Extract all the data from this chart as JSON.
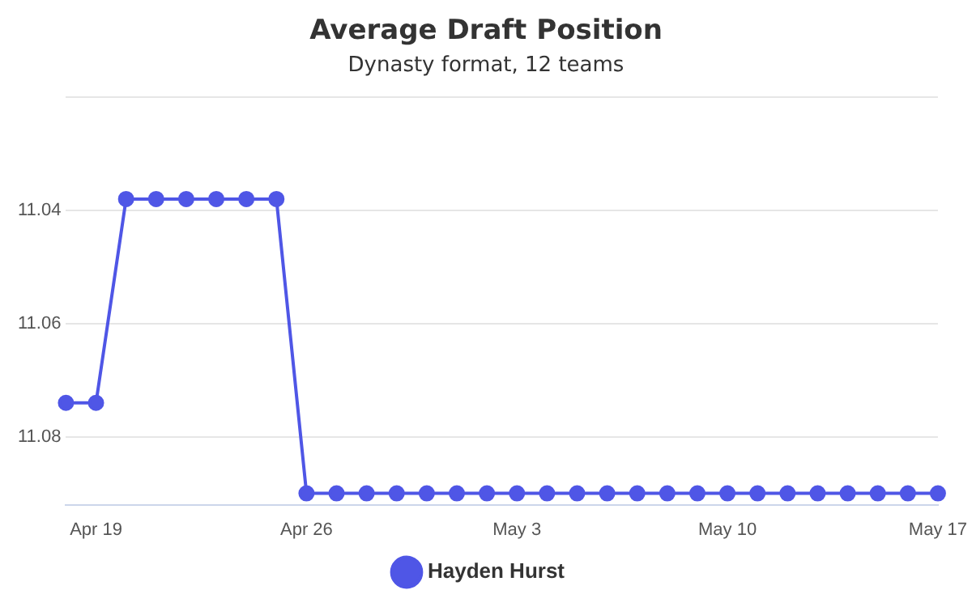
{
  "chart_data": {
    "type": "line",
    "title": "Average Draft Position",
    "subtitle": "Dynasty format, 12 teams",
    "x": [
      "--04-18",
      "--04-19",
      "--04-20",
      "--04-21",
      "--04-22",
      "--04-23",
      "--04-24",
      "--04-25",
      "--04-26",
      "--04-27",
      "--04-28",
      "--04-29",
      "--04-30",
      "--05-01",
      "--05-02",
      "--05-03",
      "--05-04",
      "--05-05",
      "--05-06",
      "--05-07",
      "--05-08",
      "--05-09",
      "--05-10",
      "--05-11",
      "--05-12",
      "--05-13",
      "--05-14",
      "--05-15",
      "--05-16",
      "--05-17"
    ],
    "series": [
      {
        "name": "Hayden Hurst",
        "color": "#4f56e6",
        "values": [
          11.074,
          11.074,
          11.038,
          11.038,
          11.038,
          11.038,
          11.038,
          11.038,
          11.09,
          11.09,
          11.09,
          11.09,
          11.09,
          11.09,
          11.09,
          11.09,
          11.09,
          11.09,
          11.09,
          11.09,
          11.09,
          11.09,
          11.09,
          11.09,
          11.09,
          11.09,
          11.09,
          11.09,
          11.09,
          11.09
        ]
      }
    ],
    "xlim": [
      "--04-18",
      "--05-17"
    ],
    "xticks": [
      {
        "value": "--04-19",
        "label": "Apr 19"
      },
      {
        "value": "--04-26",
        "label": "Apr 26"
      },
      {
        "value": "--05-03",
        "label": "May 3"
      },
      {
        "value": "--05-10",
        "label": "May 10"
      },
      {
        "value": "--05-17",
        "label": "May 17"
      }
    ],
    "ylim": [
      11.092,
      11.02
    ],
    "yticks": [
      {
        "value": 11.02,
        "label": null
      },
      11.04,
      11.06,
      11.08
    ],
    "grid": "y",
    "legend": "bottom",
    "marker": "circle",
    "line_style": "solid"
  }
}
